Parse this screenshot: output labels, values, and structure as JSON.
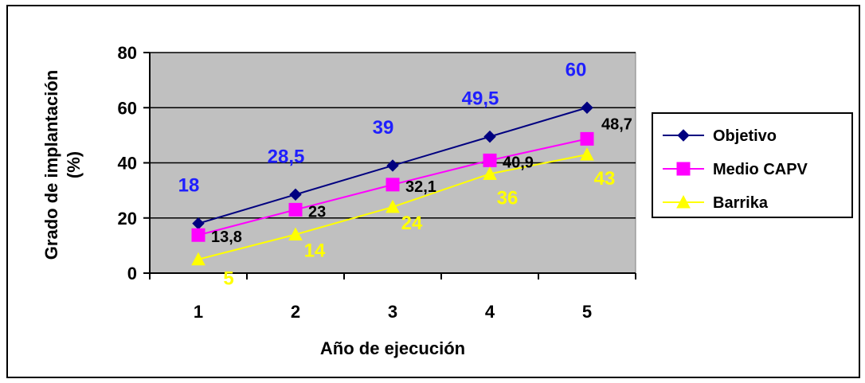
{
  "chart_data": {
    "type": "line",
    "title": "",
    "xlabel": "Año de ejecución",
    "ylabel_lines": [
      "Grado de implantación",
      "(%)"
    ],
    "categories": [
      "1",
      "2",
      "3",
      "4",
      "5"
    ],
    "ylim": [
      0,
      80
    ],
    "yticks": [
      0,
      20,
      40,
      60,
      80
    ],
    "grid": true,
    "plot_background": "#c0c0c0",
    "legend_position": "right",
    "series": [
      {
        "name": "Objetivo",
        "color": "#000080",
        "label_color": "#1f1fff",
        "marker": "diamond",
        "values": [
          18,
          28.5,
          39,
          49.5,
          60
        ],
        "labels": [
          "18",
          "28,5",
          "39",
          "49,5",
          "60"
        ]
      },
      {
        "name": "Medio CAPV",
        "color": "#ff00ff",
        "label_color": "#000000",
        "marker": "square",
        "values": [
          13.8,
          23,
          32.1,
          40.9,
          48.7
        ],
        "labels": [
          "13,8",
          "23",
          "32,1",
          "40,9",
          "48,7"
        ]
      },
      {
        "name": "Barrika",
        "color": "#ffff00",
        "label_color": "#ffff00",
        "marker": "triangle",
        "values": [
          5,
          14,
          24,
          36,
          43
        ],
        "labels": [
          "5",
          "14",
          "24",
          "36",
          "43"
        ]
      }
    ]
  }
}
